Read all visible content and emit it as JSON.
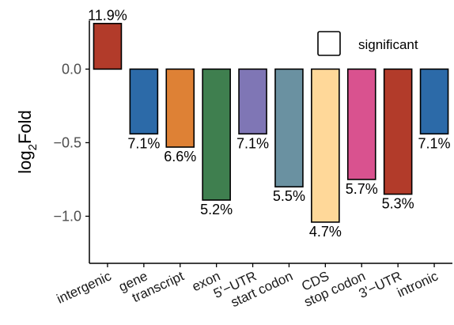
{
  "chart_data": {
    "type": "bar",
    "ylabel_main": "log",
    "ylabel_sub": "2",
    "ylabel_tail": "Fold",
    "ylim": [
      -1.32,
      0.33
    ],
    "yticks": [
      0.0,
      -0.5,
      -1.0
    ],
    "ytick_labels": [
      "0.0",
      "−0.5",
      "−1.0"
    ],
    "grid": false,
    "legend": {
      "label": "significant",
      "placement": "top-right",
      "swatch_fill": "#ffffff"
    },
    "categories": [
      "intergenic",
      "gene",
      "transcript",
      "exon",
      "5'−UTR",
      "start codon",
      "CDS",
      "stop codon",
      "3'−UTR",
      "intronic"
    ],
    "values": [
      0.31,
      -0.44,
      -0.53,
      -0.89,
      -0.44,
      -0.8,
      -1.04,
      -0.75,
      -0.85,
      -0.44
    ],
    "bar_labels": [
      "11.9%",
      "7.1%",
      "6.6%",
      "5.2%",
      "7.1%",
      "5.5%",
      "4.7%",
      "5.7%",
      "5.3%",
      "7.1%"
    ],
    "colors": [
      "#b23b2a",
      "#2c6aa8",
      "#de8135",
      "#3f7f4f",
      "#7f76b5",
      "#6a91a1",
      "#ffd899",
      "#d9528f",
      "#b23b2a",
      "#2c6aa8"
    ]
  }
}
